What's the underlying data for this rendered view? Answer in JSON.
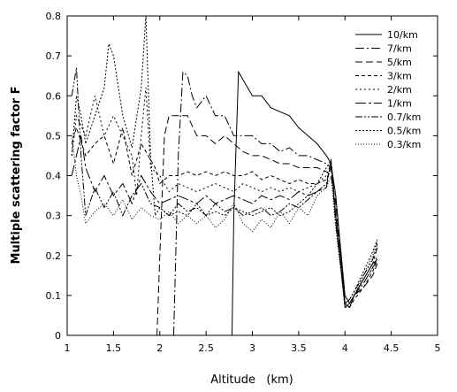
{
  "chart_data": {
    "type": "line",
    "title": "",
    "xlabel": "Altitude   (km)",
    "ylabel": "Multiple scattering factor F",
    "xlim": [
      1,
      5
    ],
    "ylim": [
      0,
      0.8
    ],
    "xticks": [
      "1",
      "1.5",
      "2",
      "2.5",
      "3",
      "3.5",
      "4",
      "4.5",
      "5"
    ],
    "yticks": [
      "0",
      "0.1",
      "0.2",
      "0.3",
      "0.4",
      "0.5",
      "0.6",
      "0.7",
      "0.8"
    ],
    "grid": false,
    "legend_position": "top-right",
    "series": [
      {
        "name": "10/km",
        "dash": "",
        "x": [
          2.78,
          2.8,
          2.85,
          2.9,
          3.0,
          3.1,
          3.2,
          3.3,
          3.4,
          3.5,
          3.6,
          3.7,
          3.8,
          3.85,
          3.9,
          4.0,
          4.05,
          4.1,
          4.2,
          4.3,
          4.35
        ],
        "y": [
          0.0,
          0.3,
          0.66,
          0.64,
          0.6,
          0.6,
          0.57,
          0.56,
          0.55,
          0.52,
          0.5,
          0.48,
          0.45,
          0.43,
          0.35,
          0.1,
          0.08,
          0.1,
          0.14,
          0.18,
          0.19
        ]
      },
      {
        "name": "7/km",
        "dash": "10,3,2,3",
        "x": [
          2.15,
          2.2,
          2.25,
          2.3,
          2.35,
          2.4,
          2.5,
          2.6,
          2.7,
          2.8,
          2.9,
          3.0,
          3.1,
          3.2,
          3.3,
          3.4,
          3.5,
          3.6,
          3.7,
          3.8,
          3.85,
          3.9,
          4.0,
          4.05,
          4.1,
          4.2,
          4.3,
          4.35
        ],
        "y": [
          0.0,
          0.45,
          0.66,
          0.65,
          0.6,
          0.57,
          0.6,
          0.55,
          0.55,
          0.5,
          0.5,
          0.5,
          0.48,
          0.48,
          0.46,
          0.47,
          0.45,
          0.45,
          0.44,
          0.43,
          0.42,
          0.35,
          0.08,
          0.07,
          0.1,
          0.13,
          0.17,
          0.19
        ]
      },
      {
        "name": "5/km",
        "dash": "8,4",
        "x": [
          1.97,
          2.0,
          2.05,
          2.1,
          2.15,
          2.2,
          2.3,
          2.4,
          2.5,
          2.6,
          2.7,
          2.8,
          2.9,
          3.0,
          3.1,
          3.2,
          3.3,
          3.4,
          3.5,
          3.6,
          3.7,
          3.8,
          3.85,
          3.9,
          4.0,
          4.05,
          4.1,
          4.2,
          4.3,
          4.35
        ],
        "y": [
          0.0,
          0.2,
          0.5,
          0.55,
          0.55,
          0.55,
          0.55,
          0.5,
          0.5,
          0.48,
          0.5,
          0.48,
          0.46,
          0.45,
          0.45,
          0.44,
          0.43,
          0.43,
          0.42,
          0.42,
          0.42,
          0.41,
          0.4,
          0.33,
          0.08,
          0.07,
          0.1,
          0.12,
          0.15,
          0.18
        ]
      },
      {
        "name": "3/km",
        "dash": "4,3",
        "x": [
          1.05,
          1.1,
          1.2,
          1.3,
          1.4,
          1.5,
          1.6,
          1.7,
          1.8,
          1.9,
          1.95,
          2.0,
          2.1,
          2.2,
          2.3,
          2.4,
          2.5,
          2.6,
          2.7,
          2.8,
          2.9,
          3.0,
          3.1,
          3.2,
          3.3,
          3.4,
          3.5,
          3.6,
          3.7,
          3.8,
          3.85,
          3.9,
          4.0,
          4.05,
          4.1,
          4.2,
          4.3,
          4.35
        ],
        "y": [
          0.48,
          0.52,
          0.45,
          0.48,
          0.5,
          0.43,
          0.52,
          0.4,
          0.48,
          0.44,
          0.42,
          0.38,
          0.4,
          0.4,
          0.41,
          0.4,
          0.41,
          0.4,
          0.41,
          0.4,
          0.4,
          0.41,
          0.39,
          0.4,
          0.39,
          0.38,
          0.39,
          0.38,
          0.38,
          0.39,
          0.42,
          0.3,
          0.07,
          0.07,
          0.09,
          0.12,
          0.16,
          0.19
        ]
      },
      {
        "name": "2/km",
        "dash": "2,3",
        "x": [
          1.05,
          1.1,
          1.2,
          1.3,
          1.4,
          1.5,
          1.6,
          1.7,
          1.75,
          1.8,
          1.85,
          1.9,
          2.0,
          2.1,
          2.2,
          2.3,
          2.4,
          2.5,
          2.6,
          2.7,
          2.8,
          2.9,
          3.0,
          3.1,
          3.2,
          3.3,
          3.4,
          3.5,
          3.6,
          3.7,
          3.8,
          3.85,
          3.9,
          4.0,
          4.05,
          4.1,
          4.2,
          4.3,
          4.35
        ],
        "y": [
          0.45,
          0.55,
          0.5,
          0.6,
          0.5,
          0.55,
          0.5,
          0.45,
          0.35,
          0.5,
          0.62,
          0.42,
          0.4,
          0.36,
          0.38,
          0.37,
          0.36,
          0.37,
          0.38,
          0.37,
          0.36,
          0.38,
          0.37,
          0.36,
          0.37,
          0.36,
          0.37,
          0.36,
          0.37,
          0.38,
          0.4,
          0.43,
          0.3,
          0.07,
          0.08,
          0.1,
          0.13,
          0.17,
          0.2
        ]
      },
      {
        "name": "1/km",
        "dash": "12,3,3,3",
        "x": [
          1.05,
          1.1,
          1.15,
          1.2,
          1.3,
          1.4,
          1.5,
          1.6,
          1.7,
          1.8,
          1.9,
          2.0,
          2.1,
          2.2,
          2.3,
          2.4,
          2.5,
          2.6,
          2.7,
          2.8,
          2.9,
          3.0,
          3.1,
          3.2,
          3.3,
          3.4,
          3.5,
          3.6,
          3.7,
          3.8,
          3.85,
          3.9,
          4.0,
          4.05,
          4.1,
          4.2,
          4.3,
          4.35
        ],
        "y": [
          0.4,
          0.45,
          0.5,
          0.42,
          0.36,
          0.4,
          0.35,
          0.38,
          0.33,
          0.4,
          0.36,
          0.33,
          0.34,
          0.35,
          0.34,
          0.33,
          0.35,
          0.33,
          0.34,
          0.35,
          0.34,
          0.33,
          0.35,
          0.34,
          0.35,
          0.34,
          0.36,
          0.35,
          0.36,
          0.37,
          0.44,
          0.3,
          0.07,
          0.08,
          0.1,
          0.14,
          0.18,
          0.22
        ]
      },
      {
        "name": "0.7/km",
        "dash": "8,2,2,2,2,2",
        "x": [
          1.05,
          1.1,
          1.15,
          1.2,
          1.3,
          1.4,
          1.5,
          1.6,
          1.7,
          1.8,
          1.9,
          2.0,
          2.1,
          2.2,
          2.3,
          2.4,
          2.5,
          2.6,
          2.7,
          2.8,
          2.9,
          3.0,
          3.1,
          3.2,
          3.3,
          3.4,
          3.5,
          3.6,
          3.7,
          3.8,
          3.85,
          3.9,
          4.0,
          4.05,
          4.1,
          4.2,
          4.3,
          4.35
        ],
        "y": [
          0.6,
          0.67,
          0.45,
          0.3,
          0.37,
          0.32,
          0.36,
          0.3,
          0.35,
          0.38,
          0.33,
          0.32,
          0.3,
          0.33,
          0.31,
          0.32,
          0.3,
          0.33,
          0.31,
          0.32,
          0.3,
          0.31,
          0.32,
          0.3,
          0.31,
          0.33,
          0.32,
          0.34,
          0.36,
          0.38,
          0.43,
          0.28,
          0.08,
          0.09,
          0.11,
          0.15,
          0.19,
          0.23
        ]
      },
      {
        "name": "0.5/km",
        "dash": "2,2",
        "x": [
          1.05,
          1.1,
          1.15,
          1.2,
          1.3,
          1.4,
          1.45,
          1.5,
          1.6,
          1.7,
          1.8,
          1.85,
          1.9,
          1.95,
          2.0,
          2.1,
          2.2,
          2.3,
          2.4,
          2.5,
          2.6,
          2.7,
          2.8,
          2.9,
          3.0,
          3.1,
          3.2,
          3.3,
          3.4,
          3.5,
          3.6,
          3.7,
          3.8,
          3.85,
          3.9,
          4.0,
          4.05,
          4.1,
          4.2,
          4.3,
          4.35
        ],
        "y": [
          0.45,
          0.6,
          0.55,
          0.48,
          0.55,
          0.62,
          0.73,
          0.7,
          0.55,
          0.47,
          0.62,
          0.8,
          0.45,
          0.3,
          0.32,
          0.3,
          0.31,
          0.3,
          0.33,
          0.3,
          0.31,
          0.3,
          0.32,
          0.31,
          0.3,
          0.31,
          0.32,
          0.3,
          0.31,
          0.33,
          0.35,
          0.38,
          0.42,
          0.44,
          0.3,
          0.08,
          0.09,
          0.11,
          0.16,
          0.21,
          0.24
        ]
      },
      {
        "name": "0.3/km",
        "dash": "1,2",
        "x": [
          1.05,
          1.1,
          1.15,
          1.2,
          1.3,
          1.4,
          1.5,
          1.6,
          1.7,
          1.8,
          1.9,
          2.0,
          2.1,
          2.2,
          2.3,
          2.4,
          2.5,
          2.6,
          2.7,
          2.8,
          2.9,
          3.0,
          3.1,
          3.2,
          3.3,
          3.4,
          3.5,
          3.6,
          3.7,
          3.8,
          3.85,
          3.9,
          4.0,
          4.05,
          4.1,
          4.2,
          4.3,
          4.35
        ],
        "y": [
          0.5,
          0.4,
          0.35,
          0.28,
          0.31,
          0.33,
          0.3,
          0.34,
          0.29,
          0.32,
          0.3,
          0.29,
          0.31,
          0.28,
          0.3,
          0.28,
          0.3,
          0.27,
          0.29,
          0.33,
          0.28,
          0.26,
          0.29,
          0.27,
          0.31,
          0.28,
          0.32,
          0.3,
          0.35,
          0.37,
          0.4,
          0.27,
          0.07,
          0.08,
          0.1,
          0.15,
          0.2,
          0.24
        ]
      }
    ]
  }
}
